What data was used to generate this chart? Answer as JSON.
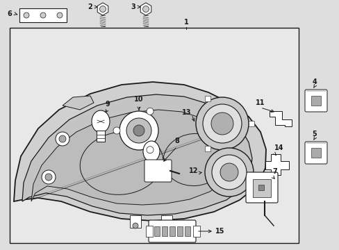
{
  "bg_color": "#dedede",
  "box_bg": "#e8e8e8",
  "line_color": "#1a1a1a",
  "figsize": [
    4.89,
    3.6
  ],
  "dpi": 100,
  "xlim": [
    0,
    489
  ],
  "ylim": [
    0,
    360
  ]
}
